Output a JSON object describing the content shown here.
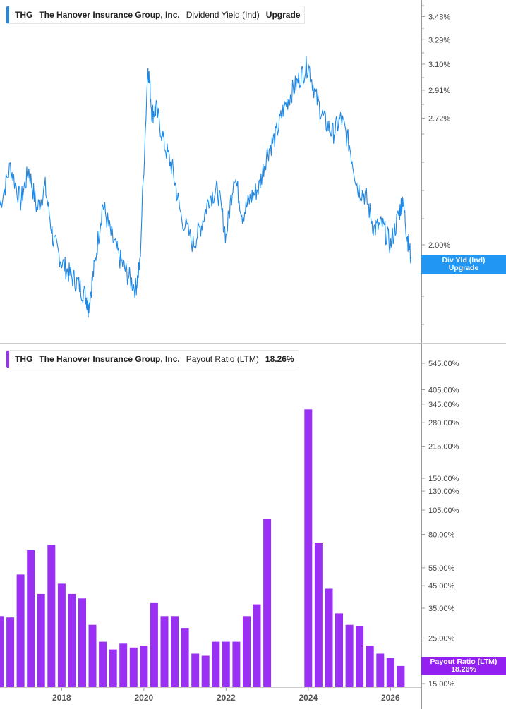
{
  "colors": {
    "div_line": "#1e88e5",
    "payout_bar": "#9b30f5",
    "div_flag": "#2196f3",
    "payout_flag": "#9320f0",
    "axis": "#999999",
    "divider": "#cccccc"
  },
  "top_panel": {
    "legend": {
      "ticker": "THG",
      "company": "The Hanover Insurance Group, Inc.",
      "metric": "Dividend Yield (Ind)",
      "value": "Upgrade"
    },
    "flag": {
      "line1": "Div Yld (Ind)",
      "line2": "Upgrade"
    }
  },
  "bottom_panel": {
    "legend": {
      "ticker": "THG",
      "company": "The Hanover Insurance Group, Inc.",
      "metric": "Payout Ratio (LTM)",
      "value": "18.26%"
    },
    "flag": {
      "line1": "Payout Ratio (LTM)",
      "line2": "18.26%"
    }
  },
  "chart_data": [
    {
      "type": "line",
      "series": [
        {
          "name": "Div Yld (Ind)"
        }
      ],
      "x_tick_labels": [
        "2018",
        "2020",
        "2022",
        "2024",
        "2026"
      ],
      "y_tick_labels": [
        "3.48%",
        "3.29%",
        "3.10%",
        "2.91%",
        "2.72%",
        "2.00%"
      ],
      "y_ticks": [
        3.48,
        3.29,
        3.1,
        2.91,
        2.72,
        2.0
      ],
      "y_scale": "log",
      "xlim": [
        2016.5,
        2026.75
      ],
      "x": [
        2016.5,
        2016.75,
        2017.0,
        2017.2,
        2017.4,
        2017.6,
        2017.8,
        2018.0,
        2018.2,
        2018.4,
        2018.6,
        2018.65,
        2018.8,
        2019.0,
        2019.2,
        2019.4,
        2019.6,
        2019.8,
        2019.9,
        2020.1,
        2020.2,
        2020.3,
        2020.5,
        2020.7,
        2020.9,
        2021.2,
        2021.4,
        2021.6,
        2021.8,
        2022.0,
        2022.2,
        2022.4,
        2022.6,
        2022.8,
        2023.0,
        2023.2,
        2023.4,
        2023.6,
        2023.8,
        2024.0,
        2024.2,
        2024.4,
        2024.6,
        2024.8,
        2025.0,
        2025.2,
        2025.4,
        2025.6,
        2025.8,
        2026.0,
        2026.2,
        2026.3,
        2026.4,
        2026.5
      ],
      "y": [
        2.2,
        2.42,
        2.22,
        2.4,
        2.18,
        2.3,
        2.02,
        1.92,
        1.86,
        1.82,
        1.76,
        1.72,
        1.9,
        2.21,
        2.05,
        1.94,
        1.86,
        1.8,
        1.9,
        3.1,
        2.75,
        2.78,
        2.55,
        2.4,
        2.15,
        2.0,
        2.1,
        2.25,
        2.28,
        2.04,
        2.38,
        2.15,
        2.24,
        2.3,
        2.5,
        2.6,
        2.78,
        2.9,
        3.0,
        3.1,
        2.85,
        2.7,
        2.62,
        2.72,
        2.55,
        2.3,
        2.25,
        2.08,
        2.1,
        2.0,
        2.15,
        2.24,
        2.05,
        1.94
      ]
    },
    {
      "type": "bar",
      "series": [
        {
          "name": "Payout Ratio (LTM)"
        }
      ],
      "x_tick_labels": [
        "2018",
        "2020",
        "2022",
        "2024",
        "2026"
      ],
      "y_tick_labels": [
        "545.00%",
        "405.00%",
        "345.00%",
        "280.00%",
        "215.00%",
        "150.00%",
        "130.00%",
        "105.00%",
        "80.00%",
        "55.00%",
        "45.00%",
        "35.00%",
        "25.00%",
        "15.00%"
      ],
      "y_ticks": [
        545,
        405,
        345,
        280,
        215,
        150,
        130,
        105,
        80,
        55,
        45,
        35,
        25,
        15
      ],
      "y_scale": "log",
      "xlim": [
        2016.5,
        2026.75
      ],
      "x": [
        2016.5,
        2016.75,
        2017.0,
        2017.25,
        2017.5,
        2017.75,
        2018.0,
        2018.25,
        2018.5,
        2018.75,
        2019.0,
        2019.25,
        2019.5,
        2019.75,
        2020.0,
        2020.25,
        2020.5,
        2020.75,
        2021.0,
        2021.25,
        2021.5,
        2021.75,
        2022.0,
        2022.25,
        2022.5,
        2022.75,
        2023.0,
        2023.25,
        2023.5,
        2023.75,
        2024.0,
        2024.25,
        2024.5,
        2024.75,
        2025.0,
        2025.25,
        2025.5,
        2025.75,
        2026.0,
        2026.25
      ],
      "values": [
        32,
        31.5,
        51,
        67,
        41,
        71,
        46,
        41,
        39,
        29,
        24,
        22,
        23.5,
        22.5,
        23,
        37,
        32,
        32,
        28,
        21,
        20.5,
        24,
        24,
        24,
        32,
        36.5,
        95,
        null,
        null,
        null,
        325,
        73,
        43.5,
        33,
        29,
        28.5,
        23,
        21,
        20,
        18.3
      ]
    }
  ]
}
